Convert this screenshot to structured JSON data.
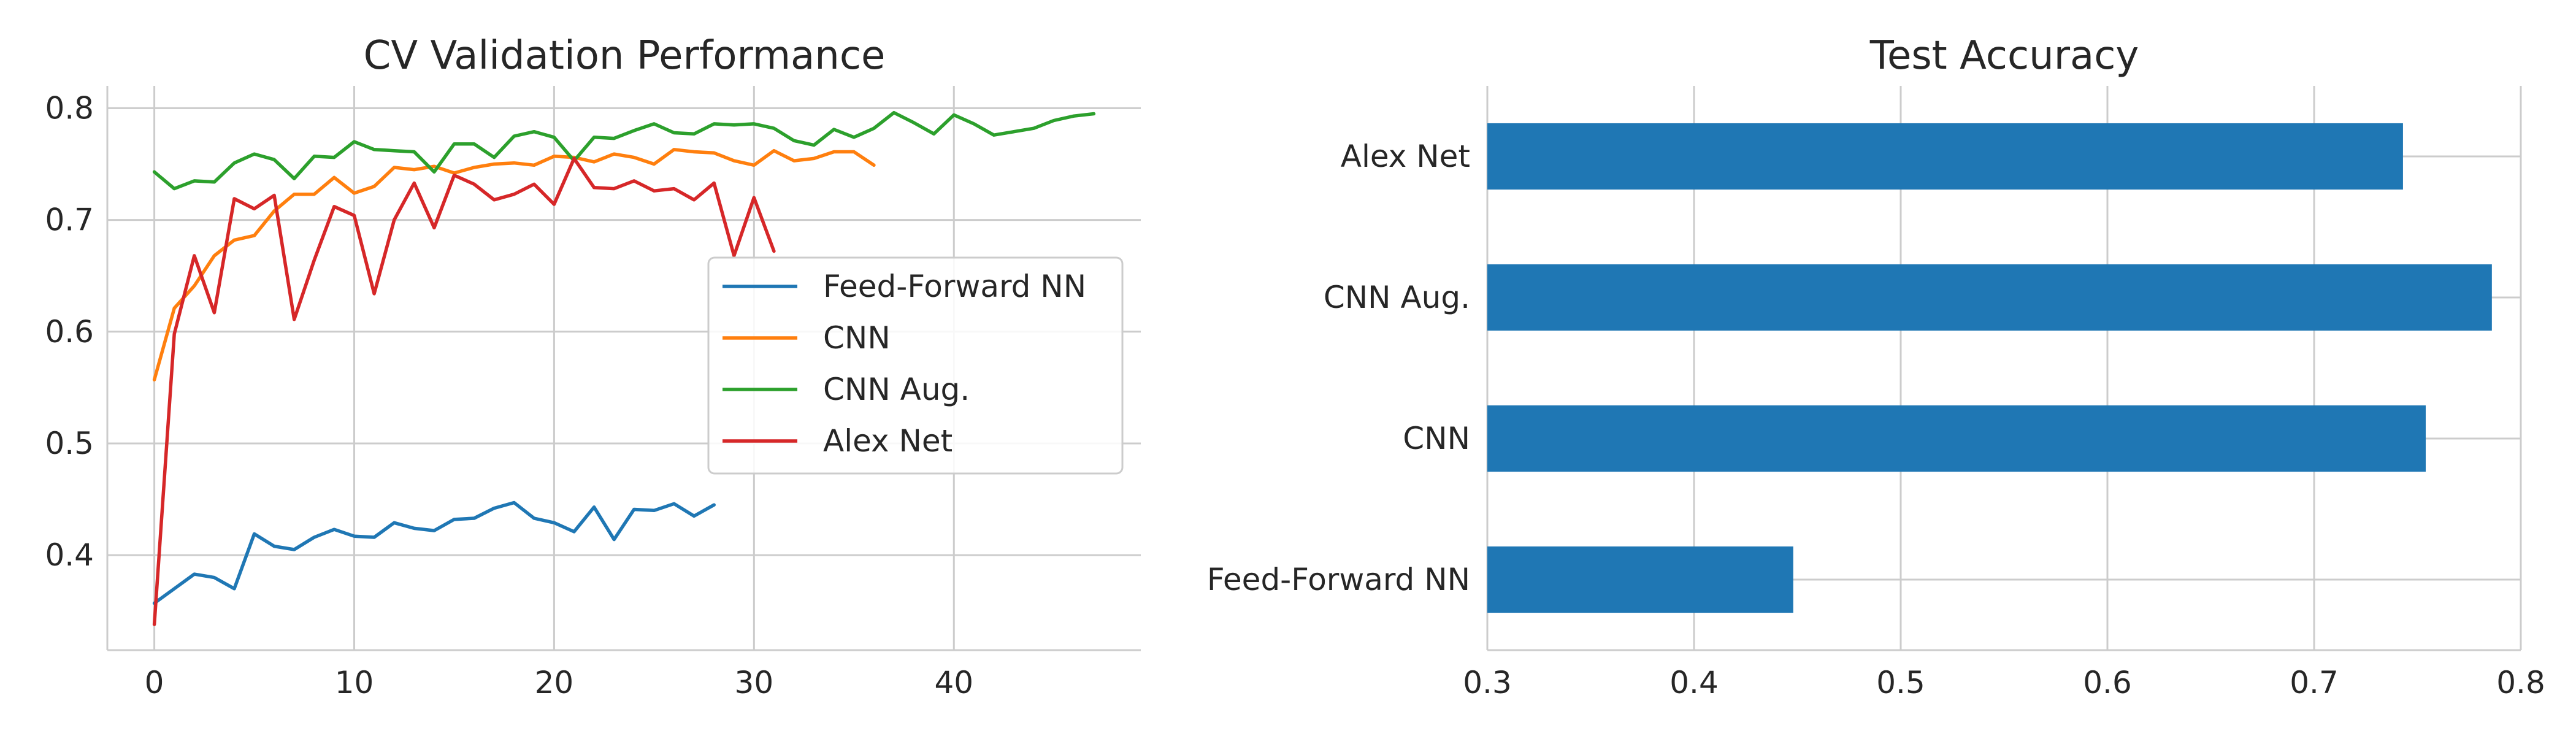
{
  "chart_data": [
    {
      "type": "line",
      "title": "CV Validation Performance",
      "xlabel": "",
      "ylabel": "",
      "xlim": [
        -2.35,
        49.35
      ],
      "ylim": [
        0.315,
        0.82
      ],
      "xticks": [
        0,
        10,
        20,
        30,
        40
      ],
      "yticks": [
        0.4,
        0.5,
        0.6,
        0.7,
        0.8
      ],
      "xtick_labels": [
        "0",
        "10",
        "20",
        "30",
        "40"
      ],
      "ytick_labels": [
        "0.4",
        "0.5",
        "0.6",
        "0.7",
        "0.8"
      ],
      "grid": true,
      "legend_position": "center-right",
      "series": [
        {
          "name": "Feed-Forward NN",
          "color": "#1f77b4",
          "values": [
            0.357,
            0.37,
            0.383,
            0.38,
            0.37,
            0.419,
            0.408,
            0.405,
            0.416,
            0.423,
            0.417,
            0.416,
            0.429,
            0.424,
            0.422,
            0.432,
            0.433,
            0.442,
            0.447,
            0.433,
            0.429,
            0.421,
            0.443,
            0.414,
            0.441,
            0.44,
            0.446,
            0.435,
            0.445
          ]
        },
        {
          "name": "CNN",
          "color": "#ff7f0e",
          "values": [
            0.557,
            0.621,
            0.641,
            0.668,
            0.682,
            0.686,
            0.708,
            0.723,
            0.723,
            0.738,
            0.724,
            0.73,
            0.747,
            0.745,
            0.748,
            0.742,
            0.747,
            0.75,
            0.751,
            0.749,
            0.757,
            0.756,
            0.752,
            0.759,
            0.756,
            0.75,
            0.763,
            0.761,
            0.76,
            0.753,
            0.749,
            0.762,
            0.753,
            0.755,
            0.761,
            0.761,
            0.749
          ]
        },
        {
          "name": "CNN Aug.",
          "color": "#2ca02c",
          "values": [
            0.743,
            0.728,
            0.735,
            0.734,
            0.751,
            0.759,
            0.754,
            0.737,
            0.757,
            0.756,
            0.77,
            0.763,
            0.762,
            0.761,
            0.743,
            0.768,
            0.768,
            0.756,
            0.775,
            0.779,
            0.774,
            0.753,
            0.774,
            0.773,
            0.78,
            0.786,
            0.778,
            0.777,
            0.786,
            0.785,
            0.786,
            0.782,
            0.771,
            0.767,
            0.781,
            0.774,
            0.782,
            0.796,
            0.787,
            0.777,
            0.794,
            0.786,
            0.776,
            0.779,
            0.782,
            0.789,
            0.793,
            0.795
          ]
        },
        {
          "name": "Alex Net",
          "color": "#d62728",
          "values": [
            0.338,
            0.598,
            0.668,
            0.617,
            0.719,
            0.71,
            0.722,
            0.611,
            0.664,
            0.712,
            0.704,
            0.634,
            0.7,
            0.733,
            0.693,
            0.74,
            0.732,
            0.718,
            0.723,
            0.732,
            0.714,
            0.755,
            0.729,
            0.728,
            0.735,
            0.726,
            0.728,
            0.718,
            0.733,
            0.668,
            0.72,
            0.672
          ]
        }
      ]
    },
    {
      "type": "bar",
      "orientation": "horizontal",
      "title": "Test Accuracy",
      "xlabel": "",
      "ylabel": "",
      "xlim": [
        0.3,
        0.8
      ],
      "xticks": [
        0.3,
        0.4,
        0.5,
        0.6,
        0.7,
        0.8
      ],
      "xtick_labels": [
        "0.3",
        "0.4",
        "0.5",
        "0.6",
        "0.7",
        "0.8"
      ],
      "grid": true,
      "color": "#1f77b4",
      "categories": [
        "Feed-Forward NN",
        "CNN",
        "CNN Aug.",
        "Alex Net"
      ],
      "values": [
        0.448,
        0.754,
        0.786,
        0.743
      ]
    }
  ]
}
